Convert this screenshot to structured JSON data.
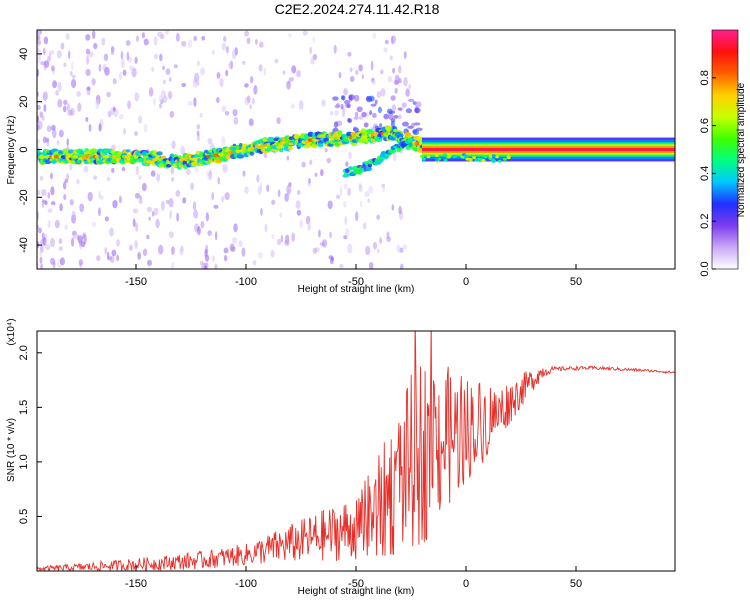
{
  "figure_title": "C2E2.2024.274.11.42.R18",
  "chart_data": [
    {
      "type": "heatmap",
      "title": "C2E2.2024.274.11.42.R18",
      "xlabel": "Height of straight line (km)",
      "ylabel": "Frequency (Hz)",
      "xlim": [
        -195,
        95
      ],
      "ylim": [
        -50,
        50
      ],
      "xticks": [
        -150,
        -100,
        -50,
        0,
        50
      ],
      "yticks": [
        -40,
        -20,
        0,
        20,
        40
      ],
      "colorbar": {
        "label": "Normalized spectral amplitude",
        "range": [
          0,
          1
        ],
        "ticks": [
          0.0,
          0.2,
          0.4,
          0.6,
          0.8
        ],
        "colors": [
          "#ffffff",
          "#c9a8f5",
          "#7d3cf0",
          "#2030ff",
          "#00c8ff",
          "#00ff80",
          "#40ff00",
          "#c8ff00",
          "#ffd000",
          "#ff6000",
          "#ff1010",
          "#ff2090"
        ]
      },
      "ridge": [
        {
          "x": -190,
          "y": -3
        },
        {
          "x": -150,
          "y": -3
        },
        {
          "x": -130,
          "y": -5
        },
        {
          "x": -110,
          "y": -2
        },
        {
          "x": -90,
          "y": 2
        },
        {
          "x": -70,
          "y": 4
        },
        {
          "x": -50,
          "y": 5
        },
        {
          "x": -35,
          "y": 7
        },
        {
          "x": -27,
          "y": 4
        },
        {
          "x": -15,
          "y": 0
        },
        {
          "x": 0,
          "y": 0
        },
        {
          "x": 95,
          "y": 0
        }
      ],
      "secondary_branch": [
        {
          "x": -55,
          "y": -10
        },
        {
          "x": -45,
          "y": -7
        },
        {
          "x": -35,
          "y": -1
        },
        {
          "x": -25,
          "y": 3
        }
      ],
      "steady_tone_from_x": -20
    },
    {
      "type": "line",
      "xlabel": "Height of straight line (km)",
      "ylabel": "SNR (10 * v/v)",
      "y_multiplier": "(x10⁴)",
      "xlim": [
        -195,
        95
      ],
      "ylim": [
        0,
        2.2
      ],
      "xticks": [
        -150,
        -100,
        -50,
        0,
        50
      ],
      "yticks": [
        0.5,
        1.0,
        1.5,
        2.0
      ],
      "color": "#e8302b",
      "series": [
        {
          "x": [
            -195,
            -180,
            -160,
            -140,
            -120,
            -100,
            -90,
            -80,
            -70,
            -60,
            -50,
            -40,
            -35,
            -30,
            -25,
            -20,
            -15,
            -10,
            -5,
            0,
            5,
            10,
            15,
            20,
            25,
            30,
            35,
            40,
            50,
            60,
            70,
            80,
            95
          ],
          "values": [
            0.02,
            0.03,
            0.05,
            0.07,
            0.1,
            0.15,
            0.2,
            0.25,
            0.3,
            0.35,
            0.4,
            0.55,
            0.7,
            0.85,
            1.0,
            1.1,
            1.2,
            1.2,
            1.25,
            1.3,
            1.35,
            1.4,
            1.45,
            1.55,
            1.65,
            1.75,
            1.83,
            1.85,
            1.86,
            1.86,
            1.85,
            1.84,
            1.82
          ]
        }
      ],
      "noise_envelope": [
        {
          "x": -195,
          "amp": 0.02
        },
        {
          "x": -100,
          "amp": 0.1
        },
        {
          "x": -50,
          "amp": 0.3
        },
        {
          "x": -20,
          "amp": 0.9
        },
        {
          "x": 0,
          "amp": 0.5
        },
        {
          "x": 20,
          "amp": 0.2
        },
        {
          "x": 40,
          "amp": 0.02
        },
        {
          "x": 95,
          "amp": 0.01
        }
      ]
    }
  ]
}
